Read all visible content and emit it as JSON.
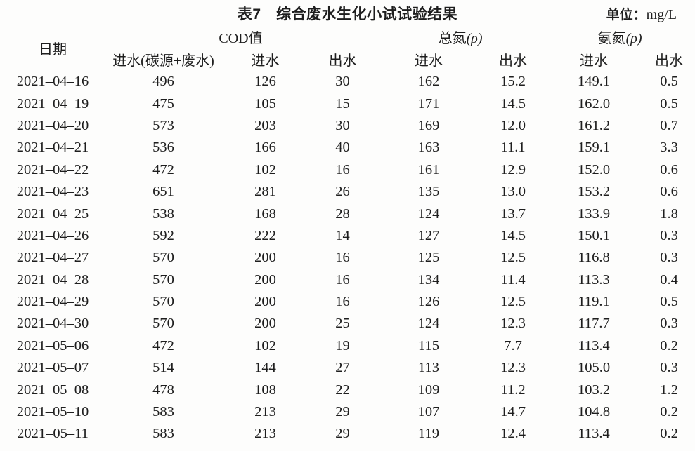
{
  "page": {
    "background_color": "#fdfdfc",
    "text_color": "#1e1e1e"
  },
  "table": {
    "title": "表7　综合废水生化小试试验结果",
    "unit": {
      "prefix": "单位：",
      "value": "mg/L"
    },
    "header": {
      "date_label": "日期",
      "groups": [
        {
          "label": "COD值",
          "rho": "",
          "subcols": [
            "进水(碳源+废水)",
            "进水",
            "出水"
          ]
        },
        {
          "label": "总氮",
          "rho": "(ρ)",
          "subcols": [
            "进水",
            "出水"
          ]
        },
        {
          "label": "氨氮",
          "rho": "(ρ)",
          "subcols": [
            "进水",
            "出水"
          ]
        }
      ]
    },
    "rows": [
      [
        "2021–04–16",
        "496",
        "126",
        "30",
        "162",
        "15.2",
        "149.1",
        "0.5"
      ],
      [
        "2021–04–19",
        "475",
        "105",
        "15",
        "171",
        "14.5",
        "162.0",
        "0.5"
      ],
      [
        "2021–04–20",
        "573",
        "203",
        "30",
        "169",
        "12.0",
        "161.2",
        "0.7"
      ],
      [
        "2021–04–21",
        "536",
        "166",
        "40",
        "163",
        "11.1",
        "159.1",
        "3.3"
      ],
      [
        "2021–04–22",
        "472",
        "102",
        "16",
        "161",
        "12.9",
        "152.0",
        "0.6"
      ],
      [
        "2021–04–23",
        "651",
        "281",
        "26",
        "135",
        "13.0",
        "153.2",
        "0.6"
      ],
      [
        "2021–04–25",
        "538",
        "168",
        "28",
        "124",
        "13.7",
        "133.9",
        "1.8"
      ],
      [
        "2021–04–26",
        "592",
        "222",
        "14",
        "127",
        "14.5",
        "150.1",
        "0.3"
      ],
      [
        "2021–04–27",
        "570",
        "200",
        "16",
        "125",
        "12.5",
        "116.8",
        "0.3"
      ],
      [
        "2021–04–28",
        "570",
        "200",
        "16",
        "134",
        "11.4",
        "113.3",
        "0.4"
      ],
      [
        "2021–04–29",
        "570",
        "200",
        "16",
        "126",
        "12.5",
        "119.1",
        "0.5"
      ],
      [
        "2021–04–30",
        "570",
        "200",
        "25",
        "124",
        "12.3",
        "117.7",
        "0.3"
      ],
      [
        "2021–05–06",
        "472",
        "102",
        "19",
        "115",
        "7.7",
        "113.4",
        "0.2"
      ],
      [
        "2021–05–07",
        "514",
        "144",
        "27",
        "113",
        "12.3",
        "105.0",
        "0.3"
      ],
      [
        "2021–05–08",
        "478",
        "108",
        "22",
        "109",
        "11.2",
        "103.2",
        "1.2"
      ],
      [
        "2021–05–10",
        "583",
        "213",
        "29",
        "107",
        "14.7",
        "104.8",
        "0.2"
      ],
      [
        "2021–05–11",
        "583",
        "213",
        "29",
        "119",
        "12.4",
        "113.4",
        "0.2"
      ]
    ]
  }
}
